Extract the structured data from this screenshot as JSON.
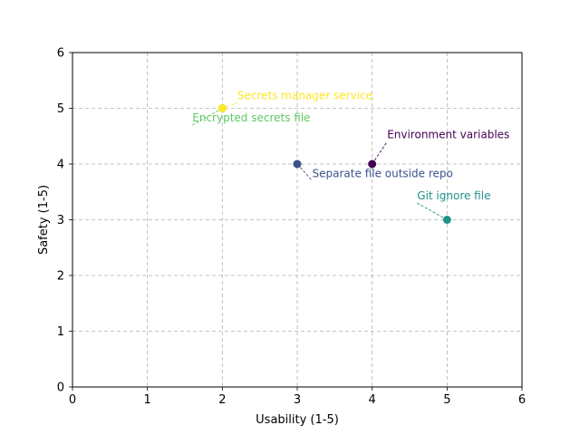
{
  "chart_data": {
    "type": "scatter",
    "title": "",
    "xlabel": "Usability (1-5)",
    "ylabel": "Safety (1-5)",
    "xlim": [
      0,
      6
    ],
    "ylim": [
      0,
      6
    ],
    "xticks": [
      0,
      1,
      2,
      3,
      4,
      5,
      6
    ],
    "yticks": [
      0,
      1,
      2,
      3,
      4,
      5,
      6
    ],
    "grid": true,
    "points": [
      {
        "label": "Environment variables",
        "x": 4,
        "y": 4,
        "color": "#440154"
      },
      {
        "label": "Separate file outside repo",
        "x": 3,
        "y": 4,
        "color": "#3b528b"
      },
      {
        "label": "Git ignore file",
        "x": 5,
        "y": 3,
        "color": "#21918c"
      },
      {
        "label": "Encrypted secrets file",
        "x": 2,
        "y": 5,
        "color": "#5ec962"
      },
      {
        "label": "Secrets manager service",
        "x": 2,
        "y": 5,
        "color": "#fde725"
      }
    ]
  }
}
